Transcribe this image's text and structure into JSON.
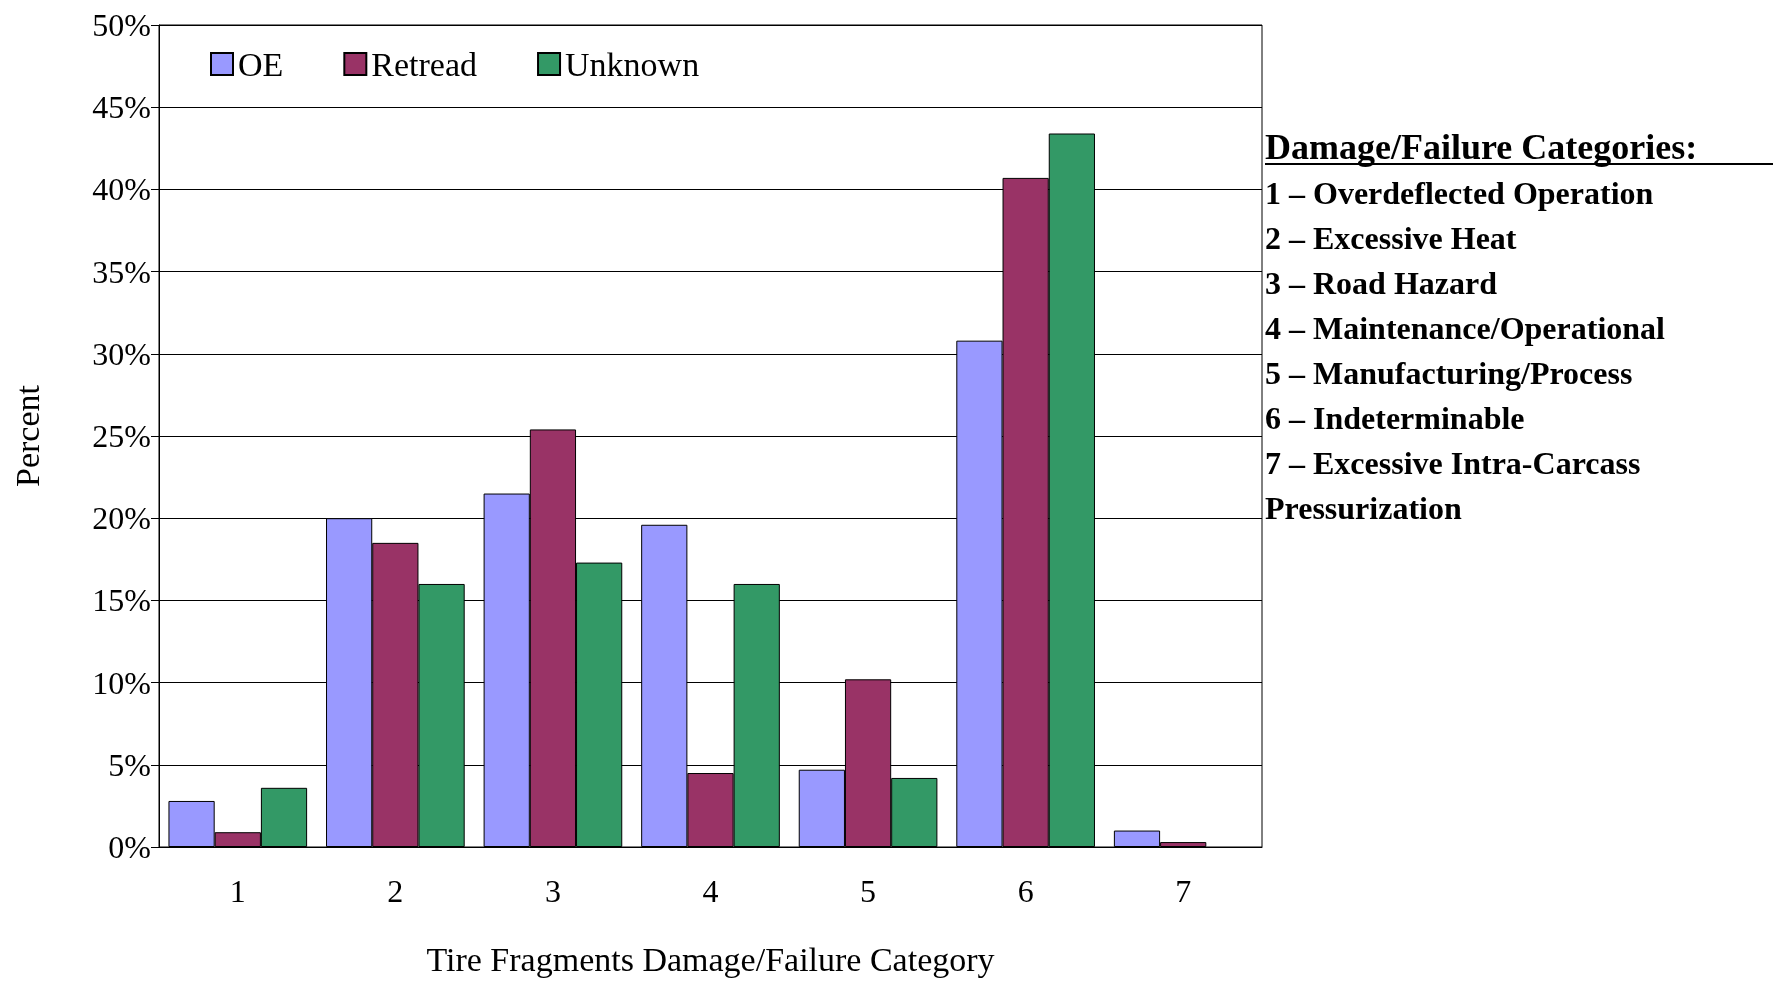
{
  "chart_data": {
    "type": "bar",
    "xlabel": "Tire Fragments Damage/Failure Category",
    "ylabel": "Percent",
    "categories": [
      "1",
      "2",
      "3",
      "4",
      "5",
      "6",
      "7"
    ],
    "series": [
      {
        "name": "OE",
        "color": "#9999ff",
        "values": [
          2.8,
          20.0,
          21.5,
          19.6,
          4.7,
          30.8,
          1.0
        ]
      },
      {
        "name": "Retread",
        "color": "#993366",
        "values": [
          0.9,
          18.5,
          25.4,
          4.5,
          10.2,
          40.7,
          0.3
        ]
      },
      {
        "name": "Unknown",
        "color": "#339966",
        "values": [
          3.6,
          16.0,
          17.3,
          16.0,
          4.2,
          43.4,
          null
        ]
      }
    ],
    "ylim": [
      0,
      50
    ],
    "yticks": [
      {
        "value": 0,
        "label": "0%"
      },
      {
        "value": 5,
        "label": "5%"
      },
      {
        "value": 10,
        "label": "10%"
      },
      {
        "value": 15,
        "label": "15%"
      },
      {
        "value": 20,
        "label": "20%"
      },
      {
        "value": 25,
        "label": "25%"
      },
      {
        "value": 30,
        "label": "30%"
      },
      {
        "value": 35,
        "label": "35%"
      },
      {
        "value": 40,
        "label": "40%"
      },
      {
        "value": 45,
        "label": "45%"
      },
      {
        "value": 50,
        "label": "50%"
      }
    ],
    "grid": "y",
    "legend": "top left",
    "annotations": [
      "Damage/Failure Categories:",
      "1 – Overdeflected Operation",
      "2 – Excessive Heat",
      "3 – Road Hazard",
      "4 – Maintenance/Operational",
      "5 – Manufacturing/Process",
      "6 – Indeterminable",
      "7 – Excessive Intra-Carcass Pressurization"
    ]
  }
}
